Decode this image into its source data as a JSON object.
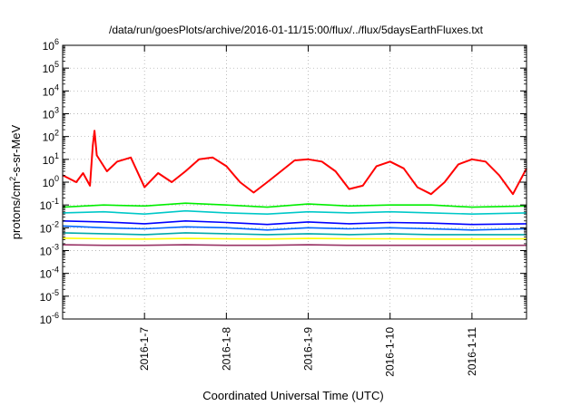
{
  "chart_data": {
    "type": "line",
    "title": "/data/run/goesPlots/archive/2016-01-11/15:00/flux/../flux/5daysEarthFluxes.txt",
    "xlabel": "Coordinated Universal Time (UTC)",
    "ylabel": "protons/cm²-s-sr-MeV",
    "ylabel_parts": {
      "pre": "protons/cm",
      "sup": "2",
      "post": "-s-sr-MeV"
    },
    "yscale": "log",
    "ylim": [
      1e-06,
      1000000.0
    ],
    "xlim": [
      "2016-01-06 00:00",
      "2016-01-11 16:00"
    ],
    "grid": true,
    "legend": "none",
    "y_ticks": [
      {
        "value": 1e-06,
        "base": "10",
        "exp": "-6"
      },
      {
        "value": 1e-05,
        "base": "10",
        "exp": "-5"
      },
      {
        "value": 0.0001,
        "base": "10",
        "exp": "-4"
      },
      {
        "value": 0.001,
        "base": "10",
        "exp": "-3"
      },
      {
        "value": 0.01,
        "base": "10",
        "exp": "-2"
      },
      {
        "value": 0.1,
        "base": "10",
        "exp": "-1"
      },
      {
        "value": 1,
        "base": "10",
        "exp": "0"
      },
      {
        "value": 10,
        "base": "10",
        "exp": "1"
      },
      {
        "value": 100,
        "base": "10",
        "exp": "2"
      },
      {
        "value": 1000,
        "base": "10",
        "exp": "3"
      },
      {
        "value": 10000,
        "base": "10",
        "exp": "4"
      },
      {
        "value": 100000,
        "base": "10",
        "exp": "5"
      },
      {
        "value": 1000000,
        "base": "10",
        "exp": "6"
      }
    ],
    "x_ticks": [
      {
        "x": "2016-01-07 00:00",
        "label": "2016-1-7"
      },
      {
        "x": "2016-01-08 00:00",
        "label": "2016-1-8"
      },
      {
        "x": "2016-01-09 00:00",
        "label": "2016-1-9"
      },
      {
        "x": "2016-01-10 00:00",
        "label": "2016-1-10"
      },
      {
        "x": "2016-01-11 00:00",
        "label": "2016-1-11"
      }
    ],
    "series": [
      {
        "color": "#ff0000",
        "x": [
          "2016-01-06 00:00",
          "2016-01-06 04:00",
          "2016-01-06 06:00",
          "2016-01-06 08:00",
          "2016-01-06 08:50",
          "2016-01-06 09:20",
          "2016-01-06 10:00",
          "2016-01-06 13:00",
          "2016-01-06 16:00",
          "2016-01-06 20:00",
          "2016-01-07 00:00",
          "2016-01-07 04:00",
          "2016-01-07 08:00",
          "2016-01-07 12:00",
          "2016-01-07 16:00",
          "2016-01-07 20:00",
          "2016-01-08 00:00",
          "2016-01-08 04:00",
          "2016-01-08 08:00",
          "2016-01-08 12:00",
          "2016-01-08 16:00",
          "2016-01-08 20:00",
          "2016-01-09 00:00",
          "2016-01-09 04:00",
          "2016-01-09 08:00",
          "2016-01-09 12:00",
          "2016-01-09 16:00",
          "2016-01-09 20:00",
          "2016-01-10 00:00",
          "2016-01-10 04:00",
          "2016-01-10 08:00",
          "2016-01-10 12:00",
          "2016-01-10 16:00",
          "2016-01-10 20:00",
          "2016-01-11 00:00",
          "2016-01-11 04:00",
          "2016-01-11 08:00",
          "2016-01-11 12:00",
          "2016-01-11 16:00"
        ],
        "values": [
          2,
          1,
          2.5,
          0.7,
          40,
          180,
          15,
          3,
          8,
          12,
          0.6,
          2.5,
          1,
          3,
          10,
          12,
          5,
          1,
          0.35,
          1,
          3,
          9,
          10,
          8,
          3,
          0.5,
          0.7,
          5,
          8,
          4,
          0.6,
          0.3,
          1,
          6,
          10,
          8,
          2,
          0.3,
          4
        ]
      },
      {
        "color": "#00ee00",
        "x": [
          "2016-01-06 00:00",
          "2016-01-06 12:00",
          "2016-01-07 00:00",
          "2016-01-07 12:00",
          "2016-01-08 00:00",
          "2016-01-08 12:00",
          "2016-01-09 00:00",
          "2016-01-09 12:00",
          "2016-01-10 00:00",
          "2016-01-10 12:00",
          "2016-01-11 00:00",
          "2016-01-11 16:00"
        ],
        "values": [
          0.08,
          0.1,
          0.09,
          0.12,
          0.1,
          0.08,
          0.11,
          0.09,
          0.1,
          0.1,
          0.08,
          0.09
        ]
      },
      {
        "color": "#00c8c8",
        "x": [
          "2016-01-06 00:00",
          "2016-01-06 12:00",
          "2016-01-07 00:00",
          "2016-01-07 12:00",
          "2016-01-08 00:00",
          "2016-01-08 12:00",
          "2016-01-09 00:00",
          "2016-01-09 12:00",
          "2016-01-10 00:00",
          "2016-01-10 12:00",
          "2016-01-11 00:00",
          "2016-01-11 16:00"
        ],
        "values": [
          0.045,
          0.05,
          0.04,
          0.055,
          0.045,
          0.04,
          0.05,
          0.045,
          0.05,
          0.045,
          0.04,
          0.045
        ]
      },
      {
        "color": "#0000ff",
        "x": [
          "2016-01-06 00:00",
          "2016-01-06 12:00",
          "2016-01-07 00:00",
          "2016-01-07 12:00",
          "2016-01-08 00:00",
          "2016-01-08 12:00",
          "2016-01-09 00:00",
          "2016-01-09 12:00",
          "2016-01-10 00:00",
          "2016-01-10 12:00",
          "2016-01-11 00:00",
          "2016-01-11 16:00"
        ],
        "values": [
          0.02,
          0.018,
          0.015,
          0.02,
          0.017,
          0.014,
          0.018,
          0.015,
          0.017,
          0.016,
          0.014,
          0.015
        ]
      },
      {
        "color": "#0066ff",
        "x": [
          "2016-01-06 00:00",
          "2016-01-06 12:00",
          "2016-01-07 00:00",
          "2016-01-07 12:00",
          "2016-01-08 00:00",
          "2016-01-08 12:00",
          "2016-01-09 00:00",
          "2016-01-09 12:00",
          "2016-01-10 00:00",
          "2016-01-10 12:00",
          "2016-01-11 00:00",
          "2016-01-11 16:00"
        ],
        "values": [
          0.012,
          0.01,
          0.009,
          0.011,
          0.01,
          0.008,
          0.01,
          0.009,
          0.01,
          0.009,
          0.008,
          0.009
        ]
      },
      {
        "color": "#00aaaa",
        "x": [
          "2016-01-06 00:00",
          "2016-01-06 12:00",
          "2016-01-07 00:00",
          "2016-01-07 12:00",
          "2016-01-08 00:00",
          "2016-01-08 12:00",
          "2016-01-09 00:00",
          "2016-01-09 12:00",
          "2016-01-10 00:00",
          "2016-01-10 12:00",
          "2016-01-11 00:00",
          "2016-01-11 16:00"
        ],
        "values": [
          0.006,
          0.0055,
          0.005,
          0.006,
          0.0055,
          0.005,
          0.0055,
          0.005,
          0.0055,
          0.005,
          0.005,
          0.005
        ]
      },
      {
        "color": "#ffff00",
        "x": [
          "2016-01-06 00:00",
          "2016-01-06 12:00",
          "2016-01-07 00:00",
          "2016-01-07 12:00",
          "2016-01-08 00:00",
          "2016-01-08 12:00",
          "2016-01-09 00:00",
          "2016-01-09 12:00",
          "2016-01-10 00:00",
          "2016-01-10 12:00",
          "2016-01-11 00:00",
          "2016-01-11 16:00"
        ],
        "values": [
          0.0035,
          0.0033,
          0.0032,
          0.0034,
          0.0033,
          0.0032,
          0.0034,
          0.0033,
          0.0033,
          0.0032,
          0.0032,
          0.0033
        ]
      },
      {
        "color": "#993366",
        "x": [
          "2016-01-06 00:00",
          "2016-01-06 12:00",
          "2016-01-07 00:00",
          "2016-01-07 12:00",
          "2016-01-08 00:00",
          "2016-01-08 12:00",
          "2016-01-09 00:00",
          "2016-01-09 12:00",
          "2016-01-10 00:00",
          "2016-01-10 12:00",
          "2016-01-11 00:00",
          "2016-01-11 16:00"
        ],
        "values": [
          0.0018,
          0.0017,
          0.0017,
          0.0018,
          0.0017,
          0.0017,
          0.0018,
          0.0017,
          0.0017,
          0.0017,
          0.0017,
          0.0017
        ]
      }
    ]
  }
}
